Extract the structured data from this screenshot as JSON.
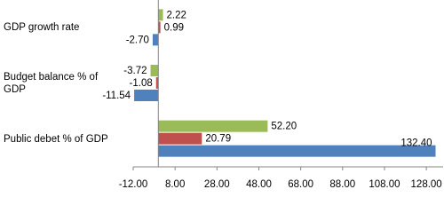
{
  "chart_data": {
    "type": "bar",
    "orientation": "horizontal",
    "categories": [
      "GDP growth rate",
      "Budget balance % of GDP",
      "Public debet % of GDP"
    ],
    "series": [
      {
        "color": "#9bbb59",
        "values": [
          2.22,
          -3.72,
          52.2
        ],
        "value_labels": [
          "2.22",
          "-3.72",
          "52.20"
        ]
      },
      {
        "color": "#c0504d",
        "values": [
          0.99,
          -1.08,
          20.79
        ],
        "value_labels": [
          "0.99",
          "-1.08",
          "20.79"
        ]
      },
      {
        "color": "#4f81bd",
        "values": [
          -2.7,
          -11.54,
          132.4
        ],
        "value_labels": [
          "-2.70",
          "-11.54",
          "132.40"
        ]
      }
    ],
    "xlim": [
      -12,
      136
    ],
    "xticks": [
      {
        "value": -12,
        "label": "-12.00"
      },
      {
        "value": 8,
        "label": "8.00"
      },
      {
        "value": 28,
        "label": "28.00"
      },
      {
        "value": 48,
        "label": "48.00"
      },
      {
        "value": 68,
        "label": "68.00"
      },
      {
        "value": 88,
        "label": "88.00"
      },
      {
        "value": 108,
        "label": "108.00"
      },
      {
        "value": 128,
        "label": "128.00"
      }
    ]
  }
}
